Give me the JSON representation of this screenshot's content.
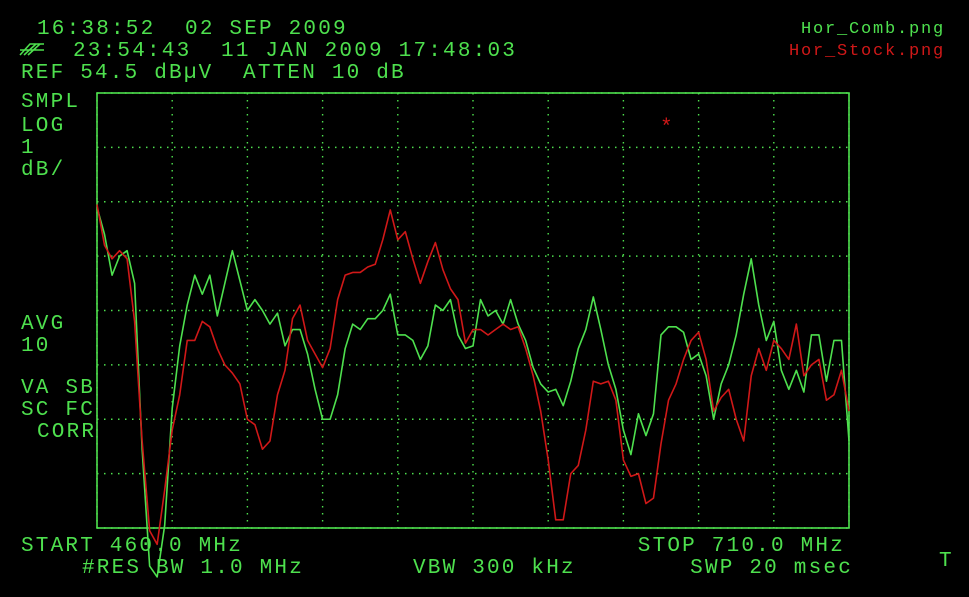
{
  "chart_data": {
    "type": "line",
    "annotations": [
      "16:38:52  02 SEP 2009",
      "23:54:43  11 JAN 2009 17:48:03",
      "REF 54.5 dBµV  ATTEN 10 dB",
      "SMPL",
      "LOG",
      "1",
      "dB/",
      "AVG",
      "10",
      "VA SB",
      "SC FC",
      "CORR",
      "START 460.0 MHz",
      "STOP 710.0 MHz",
      "#RES BW 1.0 MHz",
      "VBW 300 kHz",
      "SWP 20 msec",
      "T",
      "*"
    ],
    "xlim": [
      460,
      710
    ],
    "ylim": [
      46.5,
      54.5
    ],
    "xticks": [
      460,
      485,
      510,
      535,
      560,
      585,
      610,
      635,
      660,
      685,
      710
    ],
    "yticks": [
      46.5,
      47.5,
      48.5,
      49.5,
      50.5,
      51.5,
      52.5,
      53.5,
      54.5
    ],
    "grid": true,
    "legend": "upper right",
    "x": [
      460,
      462.5,
      465,
      467.5,
      470,
      472.5,
      475,
      477.5,
      480,
      482.5,
      485,
      487.5,
      490,
      492.5,
      495,
      497.5,
      500,
      502.5,
      505,
      507.5,
      510,
      512.5,
      515,
      517.5,
      520,
      522.5,
      525,
      527.5,
      530,
      532.5,
      535,
      537.5,
      540,
      542.5,
      545,
      547.5,
      550,
      552.5,
      555,
      557.5,
      560,
      562.5,
      565,
      567.5,
      570,
      572.5,
      575,
      577.5,
      580,
      582.5,
      585,
      587.5,
      590,
      592.5,
      595,
      597.5,
      600,
      602.5,
      605,
      607.5,
      610,
      612.5,
      615,
      617.5,
      620,
      622.5,
      625,
      627.5,
      630,
      632.5,
      635,
      637.5,
      640,
      642.5,
      645,
      647.5,
      650,
      652.5,
      655,
      657.5,
      660,
      662.5,
      665,
      667.5,
      670,
      672.5,
      675,
      677.5,
      680,
      682.5,
      685,
      687.5,
      690,
      692.5,
      695,
      697.5,
      700,
      702.5,
      705,
      707.5,
      710
    ],
    "series": [
      {
        "name": "Hor_Comb.png",
        "color": "#4ee04e",
        "values": [
          52.4,
          51.9,
          51.15,
          51.5,
          51.6,
          51.0,
          47.95,
          45.8,
          45.6,
          46.55,
          48.7,
          49.85,
          50.6,
          51.15,
          50.8,
          51.15,
          50.4,
          51.0,
          51.6,
          51.05,
          50.5,
          50.7,
          50.5,
          50.25,
          50.45,
          49.85,
          50.15,
          50.15,
          49.7,
          49.05,
          48.5,
          48.5,
          48.95,
          49.8,
          50.25,
          50.15,
          50.35,
          50.35,
          50.5,
          50.8,
          50.05,
          50.05,
          49.95,
          49.6,
          49.85,
          50.6,
          50.5,
          50.7,
          50.05,
          49.8,
          49.85,
          50.7,
          50.4,
          50.5,
          50.25,
          50.7,
          50.25,
          49.95,
          49.45,
          49.15,
          49.0,
          49.05,
          48.75,
          49.2,
          49.8,
          50.15,
          50.75,
          50.15,
          49.5,
          49.05,
          48.3,
          47.85,
          48.6,
          48.2,
          48.6,
          50.05,
          50.2,
          50.2,
          50.1,
          49.6,
          49.7,
          49.3,
          48.5,
          49.15,
          49.5,
          50.05,
          50.8,
          51.45,
          50.6,
          49.95,
          50.3,
          49.4,
          49.05,
          49.4,
          49.0,
          50.05,
          50.05,
          49.2,
          49.95,
          49.95,
          48.1
        ]
      },
      {
        "name": "Hor_Stock.png",
        "color": "#d01818",
        "values": [
          52.45,
          51.7,
          51.45,
          51.6,
          51.45,
          50.3,
          48.1,
          46.45,
          46.2,
          47.2,
          48.3,
          48.95,
          49.95,
          49.95,
          50.3,
          50.2,
          49.8,
          49.5,
          49.35,
          49.15,
          48.5,
          48.4,
          47.95,
          48.1,
          48.95,
          49.4,
          50.35,
          50.6,
          49.95,
          49.7,
          49.45,
          49.8,
          50.7,
          51.15,
          51.2,
          51.2,
          51.3,
          51.35,
          51.8,
          52.35,
          51.8,
          51.95,
          51.45,
          51.0,
          51.4,
          51.75,
          51.25,
          50.9,
          50.7,
          49.9,
          50.15,
          50.15,
          50.05,
          50.15,
          50.25,
          50.15,
          50.2,
          49.8,
          49.3,
          48.65,
          47.75,
          46.65,
          46.65,
          47.5,
          47.65,
          48.3,
          49.2,
          49.15,
          49.2,
          48.85,
          47.75,
          47.45,
          47.5,
          46.95,
          47.05,
          48.05,
          48.85,
          49.15,
          49.6,
          49.95,
          50.1,
          49.6,
          48.65,
          48.9,
          49.05,
          48.5,
          48.1,
          49.3,
          49.8,
          49.4,
          49.95,
          49.8,
          49.6,
          50.25,
          49.3,
          49.5,
          49.6,
          48.85,
          48.95,
          49.4,
          48.65
        ]
      }
    ]
  }
}
